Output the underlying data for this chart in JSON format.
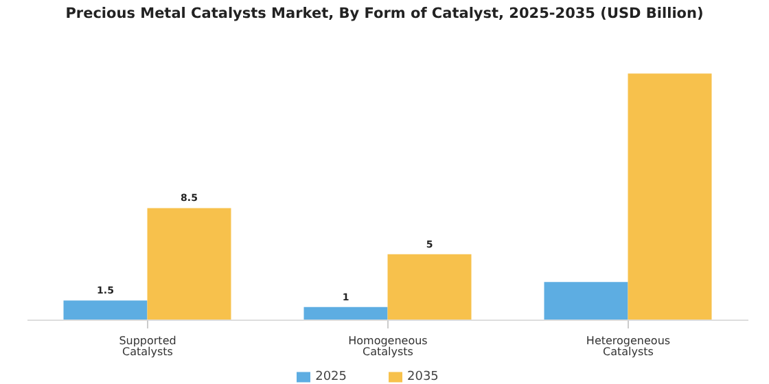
{
  "chart_data": {
    "type": "bar",
    "title": "Precious Metal Catalysts Market, By Form of Catalyst, 2025-2035 (USD Billion)",
    "categories": [
      "Supported Catalysts",
      "Homogeneous Catalysts",
      "Heterogeneous Catalysts"
    ],
    "series": [
      {
        "name": "2025",
        "color": "#5dade2",
        "values": [
          1.5,
          1,
          2.9
        ],
        "value_labels": [
          "1.5",
          "1",
          null
        ]
      },
      {
        "name": "2035",
        "color": "#f7c14c",
        "values": [
          8.5,
          5,
          18.7
        ],
        "value_labels": [
          "8.5",
          "5",
          null
        ]
      }
    ],
    "legend": "bottom",
    "grid": false
  }
}
